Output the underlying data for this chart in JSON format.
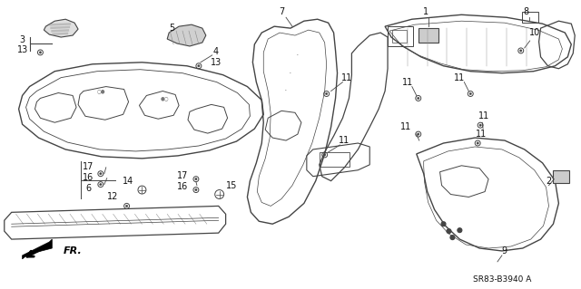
{
  "background_color": "#ffffff",
  "border_color": "#999999",
  "fig_width": 6.4,
  "fig_height": 3.19,
  "dpi": 100,
  "diagram_code": "SR83-B3940 A",
  "line_color": "#444444",
  "text_color": "#111111",
  "font_size": 6.5
}
